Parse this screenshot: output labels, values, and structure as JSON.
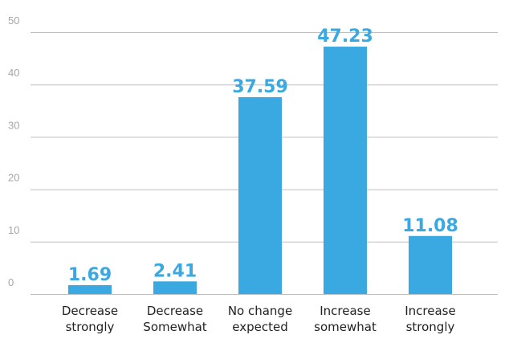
{
  "chart_data": {
    "type": "bar",
    "categories": [
      [
        "Decrease",
        "strongly"
      ],
      [
        "Decrease",
        "Somewhat"
      ],
      [
        "No change",
        "expected"
      ],
      [
        "Increase",
        "somewhat"
      ],
      [
        "Increase",
        "strongly"
      ]
    ],
    "values": [
      1.69,
      2.41,
      37.59,
      47.23,
      11.08
    ],
    "value_labels": [
      "1.69",
      "2.41",
      "37.59",
      "47.23",
      "11.08"
    ],
    "y_ticks": [
      0,
      10,
      20,
      30,
      40,
      50
    ],
    "y_tick_labels": [
      "0",
      "10",
      "20",
      "30",
      "40",
      "50"
    ],
    "ylim": [
      0,
      50
    ],
    "grid": true,
    "legend": "none",
    "bar_color": "#3aa9e1",
    "title": "",
    "xlabel": "",
    "ylabel": ""
  }
}
